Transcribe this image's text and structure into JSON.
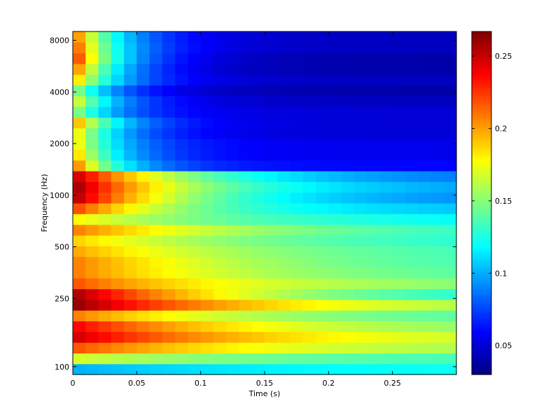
{
  "chart_data": {
    "type": "heatmap",
    "title": "",
    "xlabel": "Time (s)",
    "ylabel": "Frequency (Hz)",
    "xlim": [
      0,
      0.3
    ],
    "x_ticks": [
      0,
      0.05,
      0.1,
      0.15,
      0.2,
      0.25
    ],
    "x_tick_labels": [
      "0",
      "0.05",
      "0.1",
      "0.15",
      "0.2",
      "0.25"
    ],
    "y_scale": "log",
    "ylim": [
      90,
      9000
    ],
    "y_ticks": [
      100,
      250,
      500,
      1000,
      2000,
      4000,
      8000
    ],
    "y_tick_labels": [
      "100",
      "250",
      "500",
      "1000",
      "2000",
      "4000",
      "8000"
    ],
    "colormap": "jet",
    "color_range": [
      0.03,
      0.267
    ],
    "colorbar_ticks": [
      0.05,
      0.1,
      0.15,
      0.2,
      0.25
    ],
    "colorbar_tick_labels": [
      "0.05",
      "0.1",
      "0.15",
      "0.2",
      "0.25"
    ],
    "time_bins": 30,
    "bands": [
      {
        "row": 0,
        "start": 0.1,
        "end": 0.125,
        "tau": 0.15
      },
      {
        "row": 1,
        "start": 0.17,
        "end": 0.13,
        "tau": 0.15
      },
      {
        "row": 2,
        "start": 0.22,
        "end": 0.15,
        "tau": 0.15
      },
      {
        "row": 3,
        "start": 0.25,
        "end": 0.155,
        "tau": 0.15
      },
      {
        "row": 4,
        "start": 0.24,
        "end": 0.14,
        "tau": 0.15
      },
      {
        "row": 5,
        "start": 0.21,
        "end": 0.13,
        "tau": 0.15
      },
      {
        "row": 6,
        "start": 0.265,
        "end": 0.145,
        "tau": 0.15
      },
      {
        "row": 7,
        "start": 0.26,
        "end": 0.11,
        "tau": 0.15
      },
      {
        "row": 8,
        "start": 0.22,
        "end": 0.14,
        "tau": 0.15
      },
      {
        "row": 9,
        "start": 0.21,
        "end": 0.13,
        "tau": 0.15
      },
      {
        "row": 10,
        "start": 0.21,
        "end": 0.125,
        "tau": 0.15
      },
      {
        "row": 11,
        "start": 0.2,
        "end": 0.125,
        "tau": 0.15
      },
      {
        "row": 12,
        "start": 0.19,
        "end": 0.12,
        "tau": 0.15
      },
      {
        "row": 13,
        "start": 0.21,
        "end": 0.12,
        "tau": 0.15
      },
      {
        "row": 14,
        "start": 0.18,
        "end": 0.11,
        "tau": 0.15
      },
      {
        "row": 15,
        "start": 0.225,
        "end": 0.1,
        "tau": 0.1
      },
      {
        "row": 16,
        "start": 0.26,
        "end": 0.085,
        "tau": 0.1
      },
      {
        "row": 17,
        "start": 0.265,
        "end": 0.09,
        "tau": 0.1
      },
      {
        "row": 18,
        "start": 0.255,
        "end": 0.08,
        "tau": 0.1
      },
      {
        "row": 19,
        "start": 0.22,
        "end": 0.06,
        "tau": 0.04
      },
      {
        "row": 20,
        "start": 0.2,
        "end": 0.055,
        "tau": 0.04
      },
      {
        "row": 21,
        "start": 0.19,
        "end": 0.055,
        "tau": 0.04
      },
      {
        "row": 22,
        "start": 0.19,
        "end": 0.05,
        "tau": 0.04
      },
      {
        "row": 23,
        "start": 0.21,
        "end": 0.05,
        "tau": 0.04
      },
      {
        "row": 24,
        "start": 0.16,
        "end": 0.05,
        "tau": 0.04
      },
      {
        "row": 25,
        "start": 0.18,
        "end": 0.045,
        "tau": 0.04
      },
      {
        "row": 26,
        "start": 0.16,
        "end": 0.04,
        "tau": 0.04
      },
      {
        "row": 27,
        "start": 0.2,
        "end": 0.045,
        "tau": 0.04
      },
      {
        "row": 28,
        "start": 0.22,
        "end": 0.04,
        "tau": 0.04
      },
      {
        "row": 29,
        "start": 0.24,
        "end": 0.04,
        "tau": 0.04
      },
      {
        "row": 30,
        "start": 0.23,
        "end": 0.045,
        "tau": 0.04
      },
      {
        "row": 31,
        "start": 0.22,
        "end": 0.045,
        "tau": 0.04
      }
    ]
  }
}
